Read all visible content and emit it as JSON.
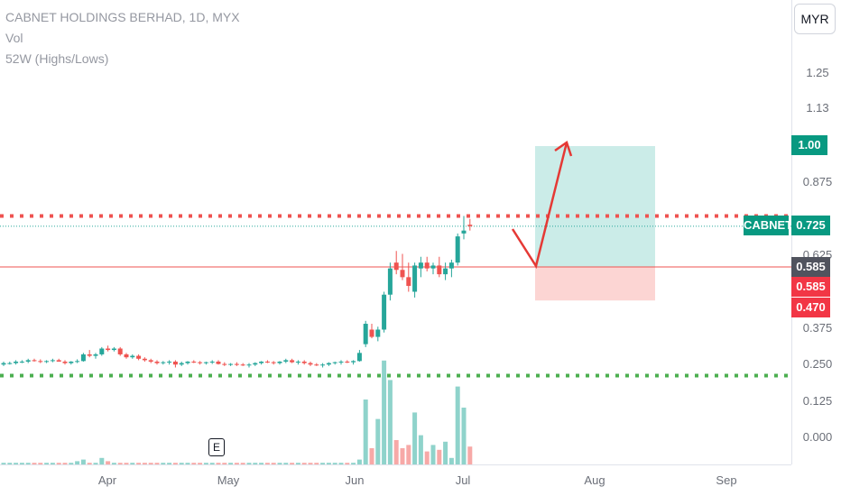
{
  "legend": {
    "title": "CABNET HOLDINGS BERHAD, 1D, MYX",
    "vol": "Vol",
    "indicator": "52W (Highs/Lows)"
  },
  "currency_button": "MYR",
  "earnings_marker": "E",
  "symbol_tag": "CABNET",
  "colors": {
    "up": "#26a69a",
    "down": "#ef5350",
    "vol_up": "#8fd3cb",
    "vol_down": "#f7a9a7",
    "target_zone": "#cbece8",
    "stop_zone": "#fcd5d3",
    "arrow": "#e53935",
    "high_line": "#ef5350",
    "low_line": "#4caf50"
  },
  "chart_data": {
    "type": "candlestick",
    "y_ticks": [
      "1.25",
      "1.13",
      "0.875",
      "0.625",
      "0.375",
      "0.250",
      "0.125",
      "0.000"
    ],
    "y_tick_values": [
      1.25,
      1.13,
      0.875,
      0.625,
      0.375,
      0.25,
      0.125,
      0.0
    ],
    "x_ticks": [
      "Apr",
      "May",
      "Jun",
      "Jul",
      "Aug",
      "Sep"
    ],
    "last_price": 0.725,
    "last_price_label": "0.725",
    "price_labels": {
      "target": "1.00",
      "entry": "0.585",
      "entry_red": "0.585",
      "stop": "0.470"
    },
    "levels": {
      "high_52w": 0.76,
      "low_52w": 0.212,
      "entry": 0.585,
      "target": 1.0,
      "stop": 0.47
    },
    "candles": [
      [
        0.25,
        0.26,
        0.245,
        0.255
      ],
      [
        0.255,
        0.26,
        0.25,
        0.255
      ],
      [
        0.255,
        0.265,
        0.25,
        0.26
      ],
      [
        0.26,
        0.265,
        0.255,
        0.26
      ],
      [
        0.26,
        0.27,
        0.255,
        0.265
      ],
      [
        0.265,
        0.27,
        0.26,
        0.262
      ],
      [
        0.262,
        0.268,
        0.255,
        0.26
      ],
      [
        0.26,
        0.265,
        0.255,
        0.262
      ],
      [
        0.262,
        0.27,
        0.258,
        0.265
      ],
      [
        0.265,
        0.27,
        0.26,
        0.26
      ],
      [
        0.26,
        0.265,
        0.25,
        0.255
      ],
      [
        0.255,
        0.262,
        0.25,
        0.26
      ],
      [
        0.26,
        0.268,
        0.255,
        0.262
      ],
      [
        0.262,
        0.29,
        0.26,
        0.285
      ],
      [
        0.285,
        0.3,
        0.275,
        0.28
      ],
      [
        0.28,
        0.29,
        0.27,
        0.285
      ],
      [
        0.285,
        0.31,
        0.28,
        0.305
      ],
      [
        0.305,
        0.315,
        0.295,
        0.3
      ],
      [
        0.3,
        0.31,
        0.295,
        0.305
      ],
      [
        0.305,
        0.31,
        0.28,
        0.285
      ],
      [
        0.285,
        0.29,
        0.27,
        0.275
      ],
      [
        0.275,
        0.285,
        0.27,
        0.28
      ],
      [
        0.28,
        0.285,
        0.265,
        0.27
      ],
      [
        0.27,
        0.275,
        0.26,
        0.265
      ],
      [
        0.265,
        0.27,
        0.255,
        0.26
      ],
      [
        0.26,
        0.265,
        0.25,
        0.255
      ],
      [
        0.255,
        0.262,
        0.25,
        0.258
      ],
      [
        0.258,
        0.265,
        0.25,
        0.26
      ],
      [
        0.26,
        0.265,
        0.24,
        0.25
      ],
      [
        0.25,
        0.26,
        0.245,
        0.255
      ],
      [
        0.255,
        0.262,
        0.25,
        0.26
      ],
      [
        0.26,
        0.265,
        0.255,
        0.258
      ],
      [
        0.258,
        0.262,
        0.25,
        0.255
      ],
      [
        0.255,
        0.26,
        0.25,
        0.258
      ],
      [
        0.258,
        0.265,
        0.252,
        0.26
      ],
      [
        0.26,
        0.265,
        0.25,
        0.252
      ],
      [
        0.252,
        0.258,
        0.245,
        0.25
      ],
      [
        0.25,
        0.255,
        0.245,
        0.252
      ],
      [
        0.252,
        0.258,
        0.245,
        0.25
      ],
      [
        0.25,
        0.255,
        0.245,
        0.248
      ],
      [
        0.248,
        0.255,
        0.24,
        0.25
      ],
      [
        0.25,
        0.258,
        0.245,
        0.255
      ],
      [
        0.255,
        0.262,
        0.25,
        0.26
      ],
      [
        0.26,
        0.265,
        0.255,
        0.258
      ],
      [
        0.258,
        0.262,
        0.25,
        0.255
      ],
      [
        0.255,
        0.262,
        0.25,
        0.26
      ],
      [
        0.26,
        0.27,
        0.255,
        0.265
      ],
      [
        0.265,
        0.27,
        0.255,
        0.258
      ],
      [
        0.258,
        0.265,
        0.25,
        0.26
      ],
      [
        0.26,
        0.265,
        0.25,
        0.255
      ],
      [
        0.255,
        0.26,
        0.245,
        0.25
      ],
      [
        0.25,
        0.255,
        0.245,
        0.248
      ],
      [
        0.248,
        0.255,
        0.24,
        0.25
      ],
      [
        0.25,
        0.258,
        0.245,
        0.255
      ],
      [
        0.255,
        0.26,
        0.25,
        0.258
      ],
      [
        0.258,
        0.265,
        0.25,
        0.26
      ],
      [
        0.26,
        0.265,
        0.255,
        0.258
      ],
      [
        0.258,
        0.265,
        0.25,
        0.262
      ],
      [
        0.262,
        0.3,
        0.26,
        0.29
      ],
      [
        0.32,
        0.4,
        0.31,
        0.39
      ],
      [
        0.37,
        0.39,
        0.34,
        0.345
      ],
      [
        0.345,
        0.38,
        0.33,
        0.37
      ],
      [
        0.37,
        0.5,
        0.36,
        0.49
      ],
      [
        0.49,
        0.6,
        0.47,
        0.58
      ],
      [
        0.6,
        0.64,
        0.56,
        0.575
      ],
      [
        0.575,
        0.63,
        0.54,
        0.55
      ],
      [
        0.55,
        0.6,
        0.5,
        0.52
      ],
      [
        0.5,
        0.6,
        0.48,
        0.59
      ],
      [
        0.58,
        0.62,
        0.55,
        0.6
      ],
      [
        0.6,
        0.62,
        0.57,
        0.58
      ],
      [
        0.58,
        0.6,
        0.56,
        0.59
      ],
      [
        0.59,
        0.62,
        0.55,
        0.56
      ],
      [
        0.56,
        0.6,
        0.54,
        0.58
      ],
      [
        0.58,
        0.61,
        0.55,
        0.6
      ],
      [
        0.6,
        0.7,
        0.59,
        0.69
      ],
      [
        0.7,
        0.76,
        0.68,
        0.71
      ],
      [
        0.73,
        0.75,
        0.71,
        0.725
      ]
    ],
    "volumes": [
      1,
      1,
      1,
      1,
      1,
      1,
      1,
      1,
      1,
      1,
      1,
      1,
      2,
      3,
      1,
      1,
      4,
      2,
      1,
      1,
      1,
      1,
      1,
      1,
      1,
      1,
      1,
      1,
      1,
      1,
      1,
      1,
      1,
      1,
      1,
      1,
      1,
      1,
      1,
      1,
      1,
      1,
      1,
      1,
      1,
      1,
      1,
      1,
      1,
      1,
      1,
      1,
      1,
      1,
      1,
      1,
      1,
      1,
      3,
      40,
      10,
      28,
      64,
      52,
      15,
      10,
      12,
      32,
      18,
      8,
      12,
      9,
      14,
      4,
      48,
      35,
      11
    ]
  }
}
